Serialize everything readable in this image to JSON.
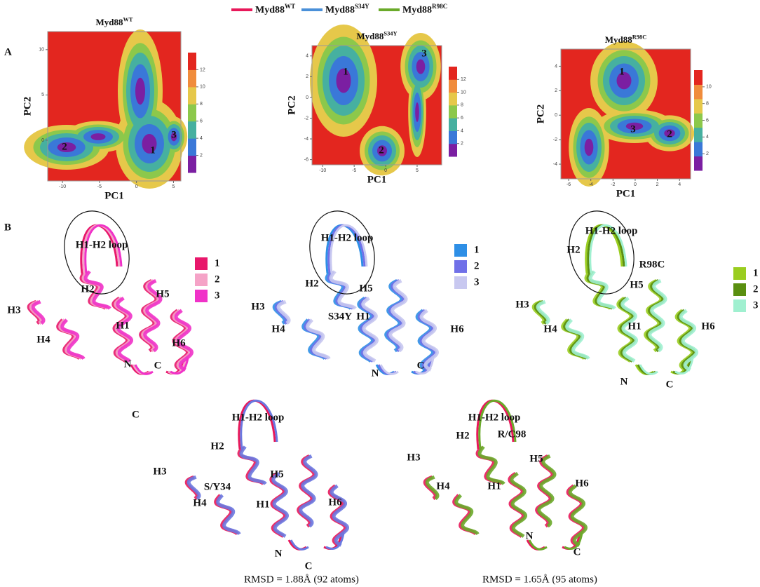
{
  "legend": [
    {
      "name": "Myd88",
      "sup": "WT",
      "color": "#e8185a"
    },
    {
      "name": "Myd88",
      "sup": "S34Y",
      "color": "#4a90d9"
    },
    {
      "name": "Myd88",
      "sup": "R98C",
      "color": "#6aaa2a"
    }
  ],
  "panel_a": {
    "label": "A",
    "plots": [
      {
        "title": "Myd88",
        "title_sup": "WT",
        "xlabel": "PC1",
        "ylabel": "PC2",
        "xlim": [
          -12,
          6
        ],
        "ylim": [
          -4.5,
          12
        ],
        "xticks": [
          -10,
          -5,
          0,
          5
        ],
        "yticks": [
          0,
          5,
          10
        ],
        "zlim": [
          0,
          14
        ],
        "zticks": [
          2,
          4,
          6,
          8,
          10,
          12
        ],
        "basins": [
          "2",
          "1",
          "3"
        ]
      },
      {
        "title": "Myd88",
        "title_sup": "S34Y",
        "xlabel": "PC1",
        "ylabel": "PC2",
        "xlim": [
          -11.7,
          8.9
        ],
        "ylim": [
          -6.5,
          5
        ],
        "xticks": [
          -10,
          -5,
          0,
          5
        ],
        "yticks": [
          -6,
          -4,
          -2,
          0,
          2,
          4
        ],
        "zlim": [
          0,
          14
        ],
        "zticks": [
          2,
          4,
          6,
          8,
          10,
          12
        ],
        "basins": [
          "1",
          "3",
          "2"
        ]
      },
      {
        "title": "Myd88",
        "title_sup": "R98C",
        "xlabel": "PC1",
        "ylabel": "PC2",
        "xlim": [
          -6.7,
          5
        ],
        "ylim": [
          -5.2,
          5.4
        ],
        "xticks": [
          -6,
          -4,
          -2,
          0,
          2,
          4
        ],
        "yticks": [
          -4,
          -2,
          0,
          2,
          4
        ],
        "zlim": [
          0,
          12
        ],
        "zticks": [
          2,
          4,
          6,
          8,
          10
        ],
        "basins": [
          "1",
          "3",
          "2"
        ]
      }
    ]
  },
  "panel_b": {
    "label": "B",
    "structures": [
      {
        "labels": [
          "H1-H2 loop",
          "H2",
          "H3",
          "H5",
          "H4",
          "H1",
          "H6",
          "N",
          "C"
        ],
        "states": [
          "1",
          "2",
          "3"
        ],
        "colors": [
          "#e8176b",
          "#f5a3c7",
          "#f032c8"
        ]
      },
      {
        "labels": [
          "H1-H2 loop",
          "H2",
          "H3",
          "H5",
          "S34Y",
          "H1",
          "H4",
          "H6",
          "N",
          "C"
        ],
        "states": [
          "1",
          "2",
          "3"
        ],
        "colors": [
          "#2e8fe6",
          "#7070e8",
          "#c8c8f0"
        ]
      },
      {
        "labels": [
          "H1-H2 loop",
          "H2",
          "R98C",
          "H5",
          "H3",
          "H4",
          "H1",
          "H6",
          "N",
          "C"
        ],
        "states": [
          "1",
          "2",
          "3"
        ],
        "colors": [
          "#9acd20",
          "#5a8f10",
          "#a0f0d0"
        ]
      }
    ]
  },
  "panel_c": {
    "label": "C",
    "overlays": [
      {
        "labels": [
          "H1-H2 loop",
          "H2",
          "H3",
          "S/Y34",
          "H5",
          "H4",
          "H1",
          "H6",
          "N",
          "C"
        ],
        "rmsd": "RMSD = 1.88Å (92 atoms)",
        "colors": [
          "#e8185a",
          "#6a78e0"
        ]
      },
      {
        "labels": [
          "H1-H2 loop",
          "H2",
          "R/C98",
          "H3",
          "H5",
          "H4",
          "H1",
          "H6",
          "N",
          "C"
        ],
        "rmsd": "RMSD = 1.65Å (95 atoms)",
        "colors": [
          "#e8185a",
          "#6aaa2a"
        ]
      }
    ]
  }
}
